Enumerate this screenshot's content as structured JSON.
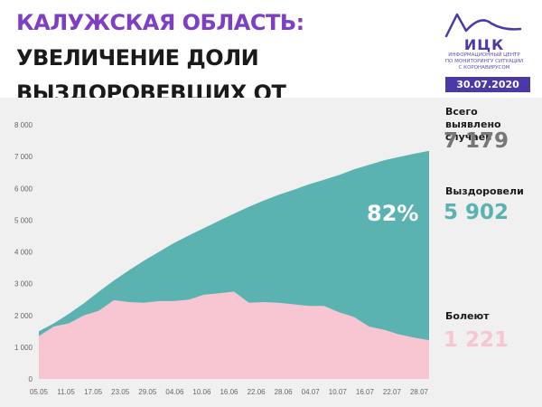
{
  "header": {
    "title_region": "КАЛУЖСКАЯ ОБЛАСТЬ:",
    "title_rest": "УВЕЛИЧЕНИЕ ДОЛИ",
    "title_line2": "ВЫЗДОРОВЕВШИХ ОТ КОРОНАВИРУСА",
    "accent_color": "#7f3fc2"
  },
  "logo": {
    "name": "ИЦК",
    "subtitle_1": "ИНФОРМАЦИОННЫЙ ЦЕНТР",
    "subtitle_2": "ПО МОНИТОРИНГУ СИТУАЦИИ",
    "subtitle_3": "С КОРОНАВИРУСОМ",
    "date": "30.07.2020",
    "color": "#4a3aa8"
  },
  "stats": {
    "total_label": "Всего выявлено случаев",
    "total_value": "7 179",
    "total_color": "#777777",
    "recovered_label": "Выздоровели",
    "recovered_value": "5 902",
    "recovered_color": "#5bb3b1",
    "sick_label": "Болеют",
    "sick_value": "1 221",
    "sick_color": "#f7c6d2",
    "recovered_share": "82%"
  },
  "chart_data": {
    "type": "area",
    "x_tick_labels": [
      "05.05",
      "11.05",
      "17.05",
      "23.05",
      "29.05",
      "04.06",
      "10.06",
      "16.06",
      "22.06",
      "28.06",
      "04.07",
      "10.07",
      "16.07",
      "22.07",
      "28.07"
    ],
    "ylim": [
      0,
      8000
    ],
    "y_ticks": [
      0,
      1000,
      2000,
      3000,
      4000,
      5000,
      6000,
      7000,
      8000
    ],
    "y_tick_labels": [
      "0",
      "1 000",
      "2 000",
      "3 000",
      "4 000",
      "5 000",
      "6 000",
      "7 000",
      "8 000"
    ],
    "grid": false,
    "series": [
      {
        "name": "Выздоровели",
        "color": "#5bb3b1",
        "values": [
          1500,
          1750,
          2050,
          2380,
          2750,
          3100,
          3420,
          3720,
          4000,
          4280,
          4520,
          4750,
          4980,
          5200,
          5420,
          5620,
          5800,
          5960,
          6130,
          6270,
          6420,
          6600,
          6740,
          6880,
          6990,
          7090,
          7179
        ]
      },
      {
        "name": "Болеют",
        "color": "#f7c6d2",
        "values": [
          1350,
          1650,
          1750,
          2000,
          2150,
          2480,
          2420,
          2400,
          2450,
          2450,
          2500,
          2650,
          2700,
          2750,
          2400,
          2420,
          2400,
          2350,
          2300,
          2300,
          2100,
          1950,
          1650,
          1550,
          1400,
          1300,
          1221
        ]
      }
    ]
  }
}
